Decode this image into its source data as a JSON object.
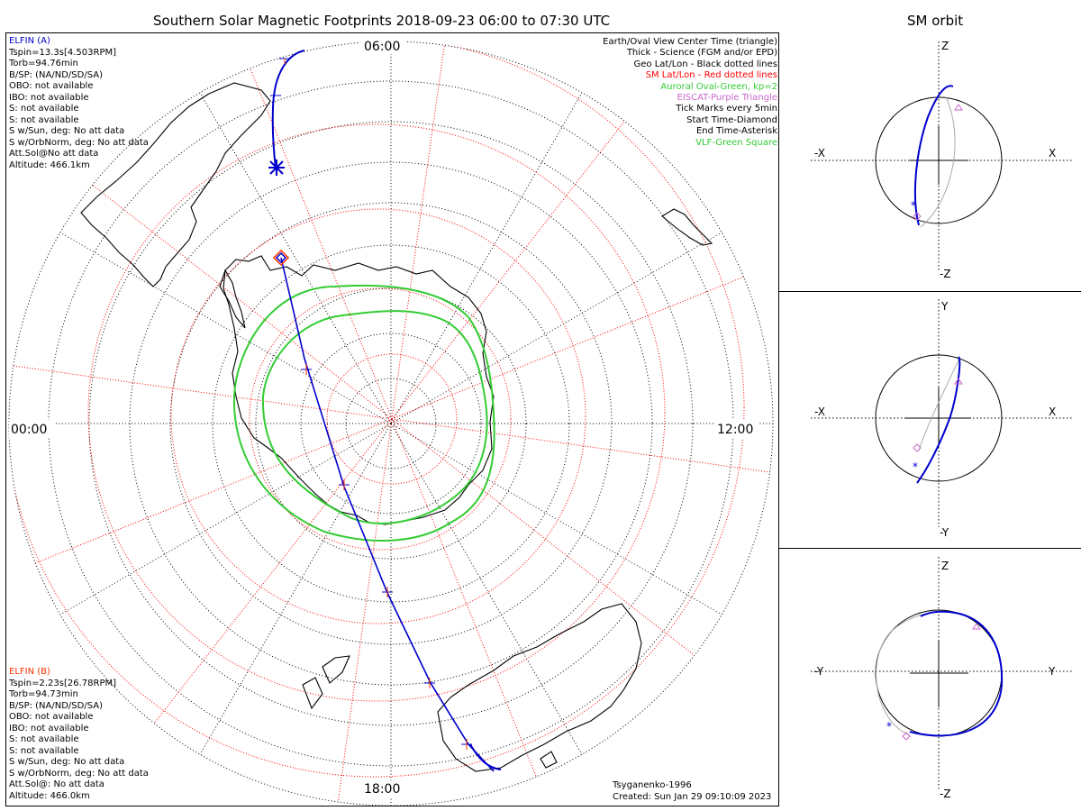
{
  "title": "Southern Solar Magnetic Footprints 2018-09-23 06:00 to 07:30 UTC",
  "orbit_title": "SM orbit",
  "time_labels": {
    "top": "06:00",
    "left": "00:00",
    "right": "12:00",
    "bottom": "18:00"
  },
  "elfin_a": {
    "name": "ELFIN (A)",
    "color": "#0000cc",
    "lines": [
      "Tspin=13.3s[4.503RPM]",
      "Torb=94.76min",
      "B/SP: (NA/ND/SD/SA)",
      "OBO: not available",
      "IBO: not available",
      "S: not available",
      "S: not available",
      "S w/Sun, deg: No att data",
      "S w/OrbNorm, deg: No att data",
      "Att.Sol@No att data",
      "Altitude: 466.1km"
    ]
  },
  "elfin_b": {
    "name": "ELFIN (B)",
    "color": "#ff3300",
    "lines": [
      "Tspin=2.23s[26.78RPM]",
      "Torb=94.73min",
      "B/SP: (NA/ND/SD/SA)",
      "OBO: not available",
      "IBO: not available",
      "S: not available",
      "S: not available",
      "S w/Sun, deg: No att data",
      "S w/OrbNorm, deg: No att data",
      "Att.Sol@: No att data",
      "Altitude: 466.0km"
    ]
  },
  "legend": [
    {
      "text": "Earth/Oval View Center Time (triangle)",
      "color": "#000000"
    },
    {
      "text": "Thick - Science (FGM and/or EPD)",
      "color": "#000000"
    },
    {
      "text": "Geo Lat/Lon - Black dotted lines",
      "color": "#000000"
    },
    {
      "text": "SM Lat/Lon - Red dotted lines",
      "color": "#ff0000"
    },
    {
      "text": "Auroral Oval-Green, kp=2",
      "color": "#33cc33"
    },
    {
      "text": "EISCAT-Purple Triangle",
      "color": "#cc66cc"
    },
    {
      "text": "Tick Marks every 5min",
      "color": "#000000"
    },
    {
      "text": "Start Time-Diamond",
      "color": "#000000"
    },
    {
      "text": "End Time-Asterisk",
      "color": "#000000"
    },
    {
      "text": "VLF-Green Square",
      "color": "#33cc33"
    }
  ],
  "footer": {
    "model": "Tsyganenko-1996",
    "created": "Created: Sun Jan 29 09:10:09 2023"
  },
  "orbit_panels": [
    {
      "top": "Z",
      "bottom": "-Z",
      "left": "-X",
      "right": "X"
    },
    {
      "top": "Y",
      "bottom": "-Y",
      "left": "-X",
      "right": "X"
    },
    {
      "top": "Z",
      "bottom": "-Z",
      "left": "-Y",
      "right": "Y"
    }
  ],
  "colors": {
    "track": "#0000cc",
    "sm_grid": "#ff0000",
    "aurora": "#33cc33",
    "geo_grid": "#000000",
    "orbit_ghost": "#aaaaaa",
    "eiscat": "#cc66cc"
  }
}
